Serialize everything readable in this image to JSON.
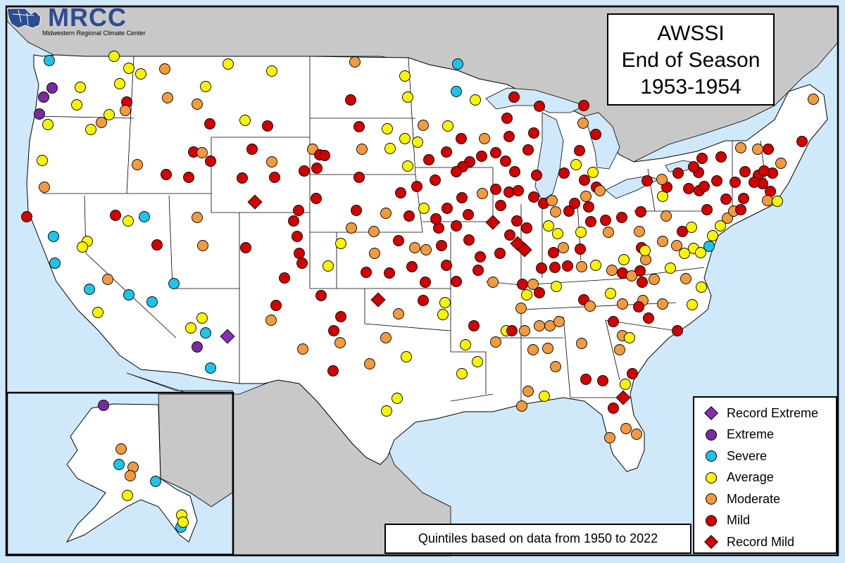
{
  "title": {
    "line1": "AWSSI",
    "line2": "End of Season",
    "line3": "1953-1954"
  },
  "note": "Quintiles based on data from 1950 to 2022",
  "logo": {
    "name": "MRCC",
    "subtitle": "Midwestern Regional Climate Center"
  },
  "colors": {
    "record_extreme": "#8a2bb5",
    "extreme": "#7b2a9e",
    "severe": "#1ec3ea",
    "average": "#f8f400",
    "moderate": "#f29a3e",
    "mild": "#d20000",
    "record_mild": "#d20000",
    "land": "#ffffff",
    "water": "#cfe9fb",
    "neighbor": "#c8c8c8"
  },
  "legend": [
    {
      "label": "Record Extreme",
      "symbol": "diamond",
      "category": "record_extreme"
    },
    {
      "label": "Extreme",
      "symbol": "circle",
      "category": "extreme"
    },
    {
      "label": "Severe",
      "symbol": "circle",
      "category": "severe"
    },
    {
      "label": "Average",
      "symbol": "circle",
      "category": "average"
    },
    {
      "label": "Moderate",
      "symbol": "circle",
      "category": "moderate"
    },
    {
      "label": "Mild",
      "symbol": "circle",
      "category": "mild"
    },
    {
      "label": "Record Mild",
      "symbol": "diamond",
      "category": "record_mild"
    }
  ]
}
